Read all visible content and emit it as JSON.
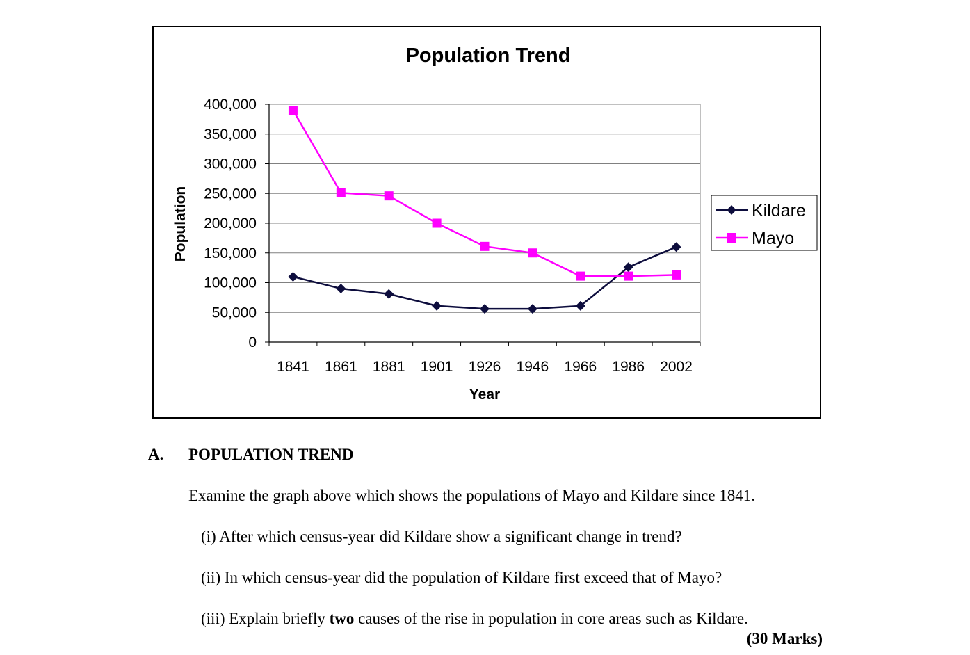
{
  "chart_data": {
    "type": "line",
    "title": "Population Trend",
    "xlabel": "Year",
    "ylabel": "Population",
    "categories": [
      "1841",
      "1861",
      "1881",
      "1901",
      "1926",
      "1946",
      "1966",
      "1986",
      "2002"
    ],
    "series": [
      {
        "name": "Kildare",
        "color": "#0d0d3d",
        "marker": "diamond",
        "values": [
          110000,
          90000,
          81000,
          61000,
          56000,
          56000,
          61000,
          126000,
          160000
        ]
      },
      {
        "name": "Mayo",
        "color": "#ff00ff",
        "marker": "square",
        "values": [
          390000,
          251000,
          246000,
          200000,
          161000,
          150000,
          111000,
          111000,
          113000
        ]
      }
    ],
    "ylim": [
      0,
      400000
    ],
    "yticks": [
      0,
      50000,
      100000,
      150000,
      200000,
      250000,
      300000,
      350000,
      400000
    ],
    "ytick_labels": [
      "0",
      "50,000",
      "100,000",
      "150,000",
      "200,000",
      "250,000",
      "300,000",
      "350,000",
      "400,000"
    ],
    "grid": true,
    "legend": "right"
  },
  "section": {
    "letter": "A.",
    "title": "POPULATION TREND",
    "intro": "Examine the graph above which shows the populations of Mayo and Kildare since 1841."
  },
  "questions": {
    "q1": "(i) After which census-year did Kildare show a significant change in trend?",
    "q2": "(ii) In which census-year did the population of Kildare first exceed that of Mayo?",
    "q3_before": "(iii) Explain briefly ",
    "q3_bold": "two",
    "q3_after": " causes of the rise in population in core areas such as Kildare."
  },
  "marks": "(30 Marks)"
}
